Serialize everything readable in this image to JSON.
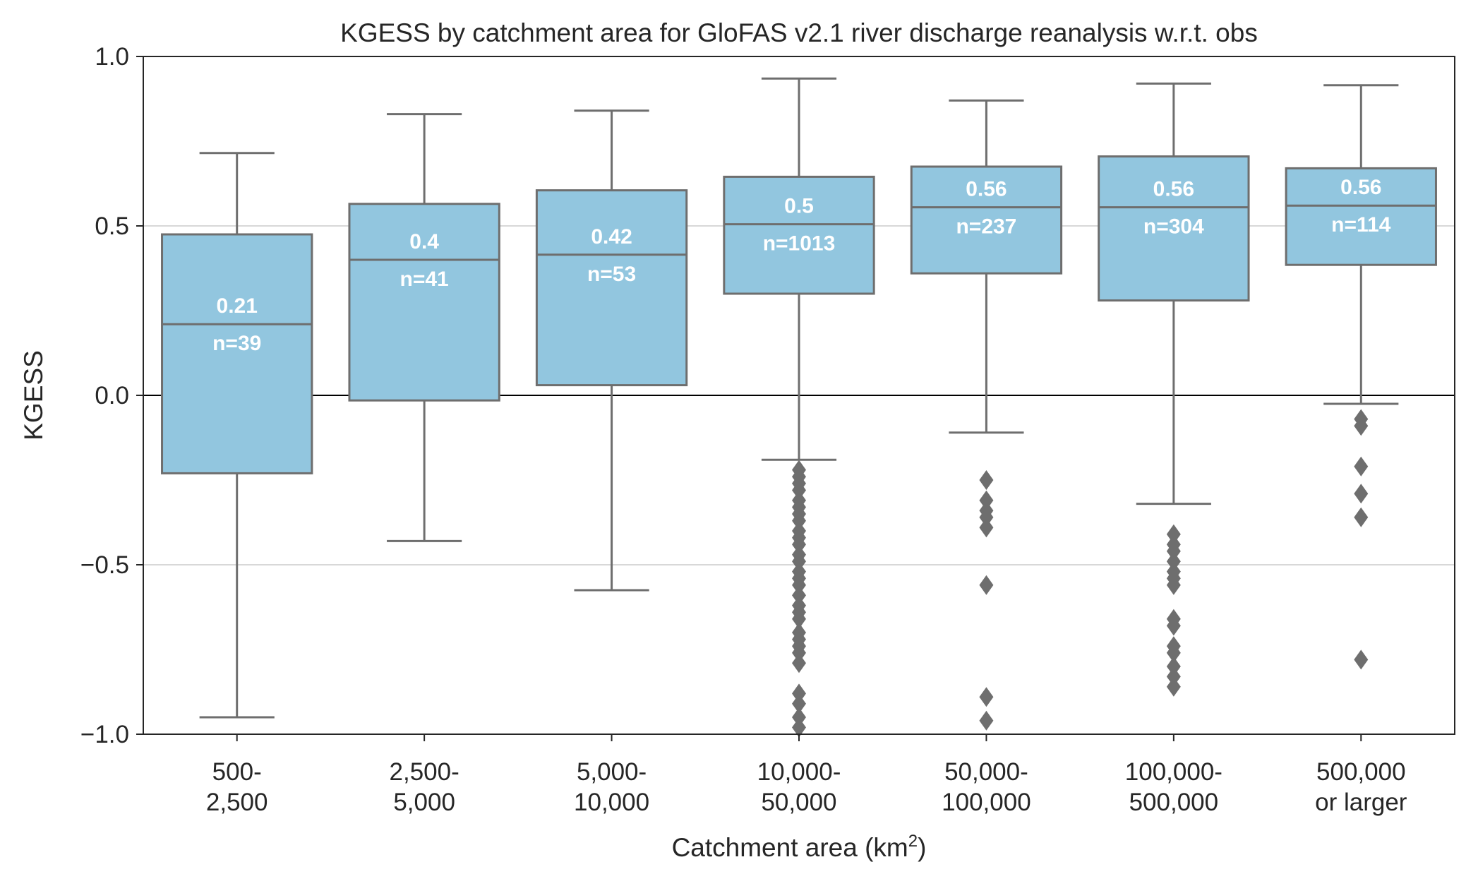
{
  "chart_data": {
    "type": "box",
    "title": "KGESS by catchment area for GloFAS v2.1 river discharge reanalysis w.r.t. obs",
    "xlabel": "Catchment area (km",
    "xlabel_sup": "2",
    "xlabel_end": ")",
    "ylabel": "KGESS",
    "ylim": [
      -1.0,
      1.0
    ],
    "yticks": [
      {
        "value": 1.0,
        "label": "1.0"
      },
      {
        "value": 0.5,
        "label": "0.5"
      },
      {
        "value": 0.0,
        "label": "0.0"
      },
      {
        "value": -0.5,
        "label": "−0.5"
      },
      {
        "value": -1.0,
        "label": "−1.0"
      }
    ],
    "grid": "horizontal",
    "colors": {
      "box": "#92c6df",
      "line": "#6e6e6e",
      "zero_line": "#000000",
      "grid": "#cccccc"
    },
    "categories": [
      {
        "line1": "500-",
        "line2": "2,500"
      },
      {
        "line1": "2,500-",
        "line2": "5,000"
      },
      {
        "line1": "5,000-",
        "line2": "10,000"
      },
      {
        "line1": "10,000-",
        "line2": "50,000"
      },
      {
        "line1": "50,000-",
        "line2": "100,000"
      },
      {
        "line1": "100,000-",
        "line2": "500,000"
      },
      {
        "line1": "500,000",
        "line2": "or larger"
      }
    ],
    "boxes": [
      {
        "whisker_low": -0.95,
        "q1": -0.23,
        "median": 0.21,
        "q3": 0.475,
        "whisker_high": 0.715,
        "median_label": "0.21",
        "n_label": "n=39",
        "outliers": []
      },
      {
        "whisker_low": -0.43,
        "q1": -0.015,
        "median": 0.4,
        "q3": 0.565,
        "whisker_high": 0.83,
        "median_label": "0.4",
        "n_label": "n=41",
        "outliers": []
      },
      {
        "whisker_low": -0.575,
        "q1": 0.03,
        "median": 0.415,
        "q3": 0.605,
        "whisker_high": 0.84,
        "median_label": "0.42",
        "n_label": "n=53",
        "outliers": []
      },
      {
        "whisker_low": -0.19,
        "q1": 0.3,
        "median": 0.505,
        "q3": 0.645,
        "whisker_high": 0.935,
        "median_label": "0.5",
        "n_label": "n=1013",
        "outliers": [
          -0.22,
          -0.24,
          -0.26,
          -0.28,
          -0.31,
          -0.33,
          -0.35,
          -0.37,
          -0.4,
          -0.42,
          -0.44,
          -0.47,
          -0.49,
          -0.52,
          -0.54,
          -0.56,
          -0.59,
          -0.62,
          -0.64,
          -0.66,
          -0.7,
          -0.72,
          -0.74,
          -0.76,
          -0.79,
          -0.88,
          -0.91,
          -0.95,
          -0.98
        ]
      },
      {
        "whisker_low": -0.11,
        "q1": 0.36,
        "median": 0.555,
        "q3": 0.675,
        "whisker_high": 0.87,
        "median_label": "0.56",
        "n_label": "n=237",
        "outliers": [
          -0.25,
          -0.31,
          -0.34,
          -0.36,
          -0.39,
          -0.56,
          -0.89,
          -0.96
        ]
      },
      {
        "whisker_low": -0.32,
        "q1": 0.28,
        "median": 0.555,
        "q3": 0.705,
        "whisker_high": 0.92,
        "median_label": "0.56",
        "n_label": "n=304",
        "outliers": [
          -0.41,
          -0.44,
          -0.46,
          -0.49,
          -0.52,
          -0.54,
          -0.56,
          -0.66,
          -0.68,
          -0.74,
          -0.76,
          -0.8,
          -0.83,
          -0.86
        ]
      },
      {
        "whisker_low": -0.025,
        "q1": 0.385,
        "median": 0.56,
        "q3": 0.67,
        "whisker_high": 0.915,
        "median_label": "0.56",
        "n_label": "n=114",
        "outliers": [
          -0.07,
          -0.09,
          -0.21,
          -0.29,
          -0.36,
          -0.78
        ]
      }
    ]
  }
}
